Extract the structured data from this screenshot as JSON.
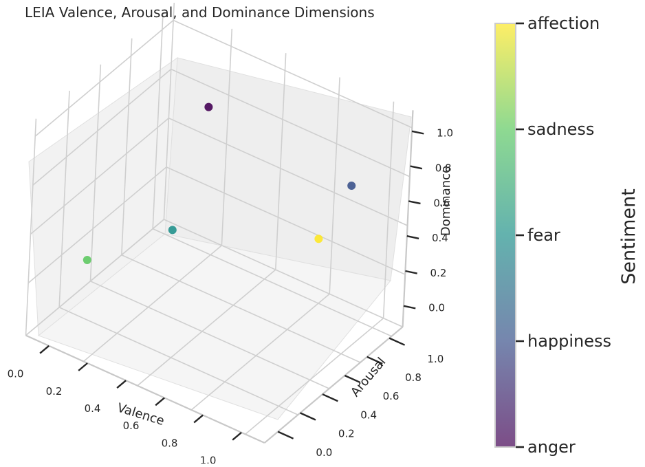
{
  "chart_data": {
    "type": "scatter",
    "title": "LEIA Valence, Arousal, and Dominance Dimensions",
    "xlabel": "Valence",
    "ylabel": "Arousal",
    "zlabel": "Dominance",
    "xlim": [
      0,
      1
    ],
    "ylim": [
      0,
      1
    ],
    "zlim": [
      0,
      1
    ],
    "xticks": [
      "0.0",
      "0.2",
      "0.4",
      "0.6",
      "0.8",
      "1.0"
    ],
    "yticks": [
      "0.0",
      "0.2",
      "0.4",
      "0.6",
      "0.8",
      "1.0"
    ],
    "zticks": [
      "0.0",
      "0.2",
      "0.4",
      "0.6",
      "0.8",
      "1.0"
    ],
    "grid": true,
    "points": [
      {
        "label": "anger",
        "x": 0.2,
        "y": 0.9,
        "z": 0.8,
        "color": "#440154"
      },
      {
        "label": "happiness",
        "x": 1.0,
        "y": 0.8,
        "z": 0.8,
        "color": "#3b528b"
      },
      {
        "label": "fear",
        "x": 0.1,
        "y": 0.8,
        "z": 0.1,
        "color": "#21918c"
      },
      {
        "label": "sadness",
        "x": 0.0,
        "y": 0.2,
        "z": 0.2,
        "color": "#5ec962"
      },
      {
        "label": "affection",
        "x": 0.9,
        "y": 0.7,
        "z": 0.5,
        "color": "#fde725"
      }
    ],
    "colorbar": {
      "label": "Sentiment",
      "categories": [
        "anger",
        "happiness",
        "fear",
        "sadness",
        "affection"
      ],
      "colors": [
        "#440154",
        "#3b528b",
        "#21918c",
        "#5ec962",
        "#fde725"
      ]
    }
  }
}
